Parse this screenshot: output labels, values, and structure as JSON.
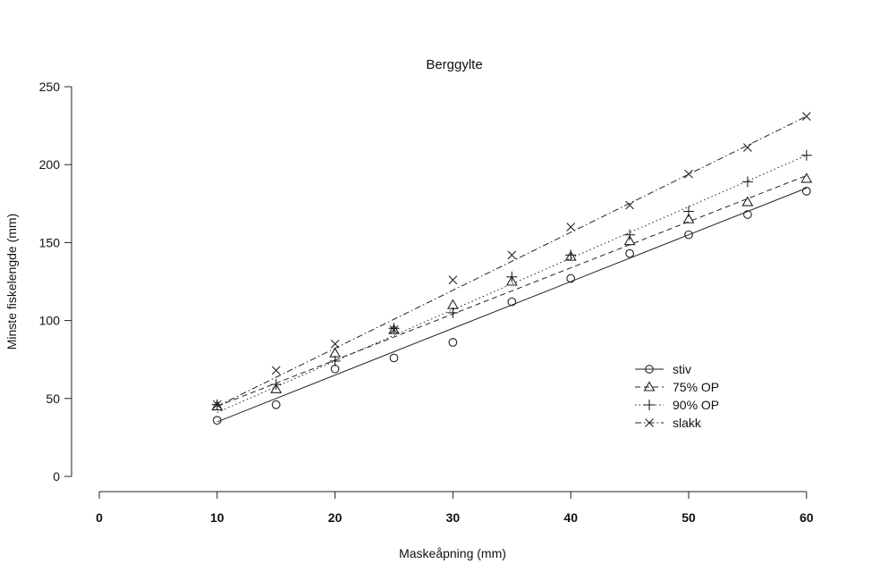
{
  "chart_data": {
    "type": "scatter",
    "title": "Berggylte",
    "xlabel": "Maskeåpning (mm)",
    "ylabel": "Minste fiskelengde (mm)",
    "xlim": [
      0,
      60
    ],
    "ylim": [
      0,
      250
    ],
    "x_ticks": [
      "0",
      "10",
      "20",
      "30",
      "40",
      "50",
      "60"
    ],
    "y_ticks": [
      "0",
      "50",
      "100",
      "150",
      "200",
      "250"
    ],
    "grid": false,
    "legend_position": "bottom-right",
    "x": [
      10,
      15,
      20,
      25,
      30,
      35,
      40,
      45,
      50,
      55,
      60
    ],
    "series": [
      {
        "name": "stiv",
        "marker": "circle",
        "line_style": "solid",
        "values": [
          36,
          46,
          69,
          76,
          86,
          112,
          127,
          143,
          155,
          168,
          183
        ],
        "fit": [
          [
            10,
            35
          ],
          [
            60,
            185
          ]
        ]
      },
      {
        "name": "75% OP",
        "marker": "triangle",
        "line_style": "dashed",
        "values": [
          45,
          56,
          79,
          94,
          110,
          125,
          141,
          151,
          165,
          176,
          191
        ],
        "fit": [
          [
            10,
            45
          ],
          [
            60,
            193
          ]
        ]
      },
      {
        "name": "90% OP",
        "marker": "plus",
        "line_style": "dotted",
        "values": [
          46,
          59,
          74,
          95,
          105,
          128,
          142,
          155,
          170,
          189,
          206
        ],
        "fit": [
          [
            10,
            41
          ],
          [
            60,
            206
          ]
        ]
      },
      {
        "name": "slakk",
        "marker": "cross",
        "line_style": "dashdot",
        "values": [
          46,
          68,
          85,
          94,
          126,
          142,
          160,
          174,
          194,
          211,
          231
        ],
        "fit": [
          [
            10,
            45
          ],
          [
            60,
            231
          ]
        ]
      }
    ]
  }
}
